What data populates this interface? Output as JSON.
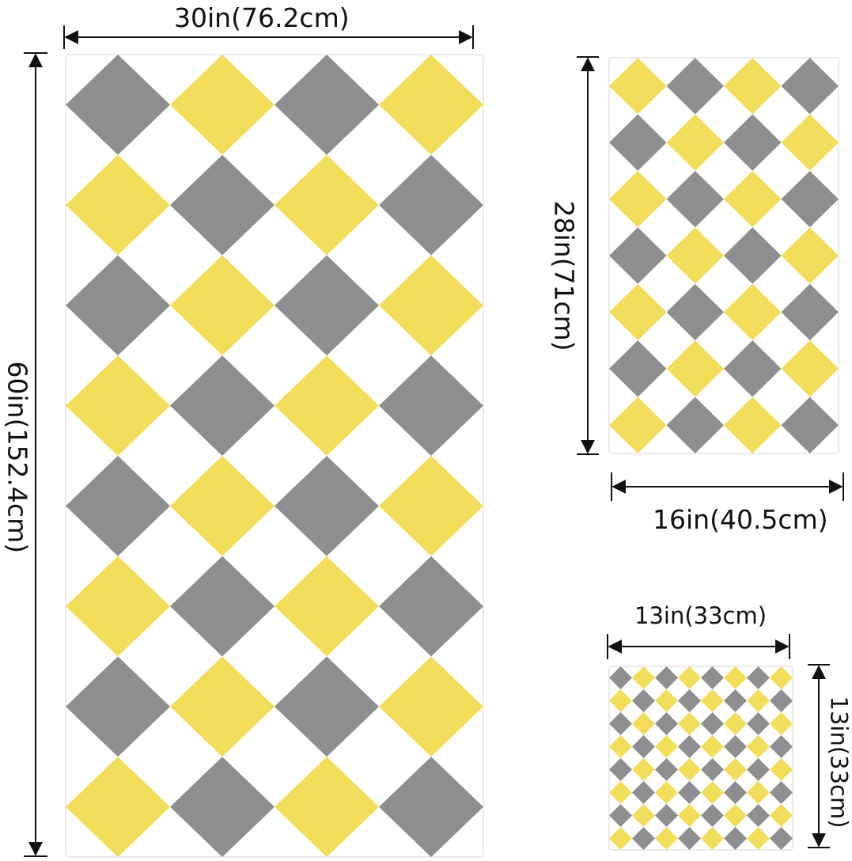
{
  "colors": {
    "yellow": "#f2dd5a",
    "gray": "#8e8e91",
    "white": "#ffffff",
    "line": "#111111"
  },
  "towels": {
    "bath": {
      "width_label": "30in(76.2cm)",
      "height_label": "60in(152.4cm)"
    },
    "hand": {
      "height_label": "28in(71cm)",
      "width_label": "16in(40.5cm)"
    },
    "washcloth": {
      "width_label": "13in(33cm)",
      "height_label": "13in(33cm)"
    }
  }
}
